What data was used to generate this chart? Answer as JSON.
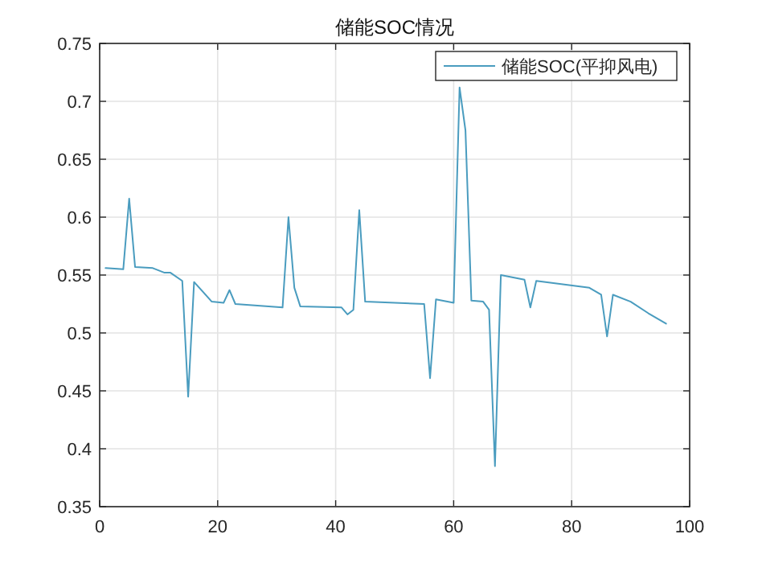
{
  "chart_data": {
    "type": "line",
    "title": "储能SOC情况",
    "xlim": [
      0,
      100
    ],
    "xticks": [
      0,
      20,
      40,
      60,
      80,
      100
    ],
    "ylim": [
      0.35,
      0.75
    ],
    "yticks": [
      0.35,
      0.4,
      0.45,
      0.5,
      0.55,
      0.6,
      0.65,
      0.7,
      0.75
    ],
    "grid": true,
    "legend": "top right",
    "marker": "none",
    "line_style": "solid",
    "series": [
      {
        "name": "储能SOC(平抑风电)",
        "color": "#4a9cbf",
        "x": [
          1,
          4,
          5,
          6,
          9,
          11,
          12,
          14,
          15,
          16,
          19,
          21,
          22,
          23,
          31,
          32,
          33,
          34,
          41,
          42,
          43,
          44,
          45,
          55,
          56,
          57,
          60,
          61,
          62,
          63,
          65,
          66,
          67,
          68,
          72,
          73,
          74,
          83,
          85,
          86,
          87,
          90,
          93,
          96
        ],
        "values": [
          0.556,
          0.555,
          0.616,
          0.557,
          0.556,
          0.552,
          0.552,
          0.545,
          0.445,
          0.544,
          0.527,
          0.526,
          0.537,
          0.525,
          0.522,
          0.6,
          0.539,
          0.523,
          0.522,
          0.516,
          0.52,
          0.606,
          0.527,
          0.525,
          0.461,
          0.529,
          0.526,
          0.712,
          0.675,
          0.528,
          0.527,
          0.52,
          0.385,
          0.55,
          0.546,
          0.522,
          0.545,
          0.539,
          0.533,
          0.497,
          0.533,
          0.527,
          0.517,
          0.508
        ]
      }
    ]
  }
}
